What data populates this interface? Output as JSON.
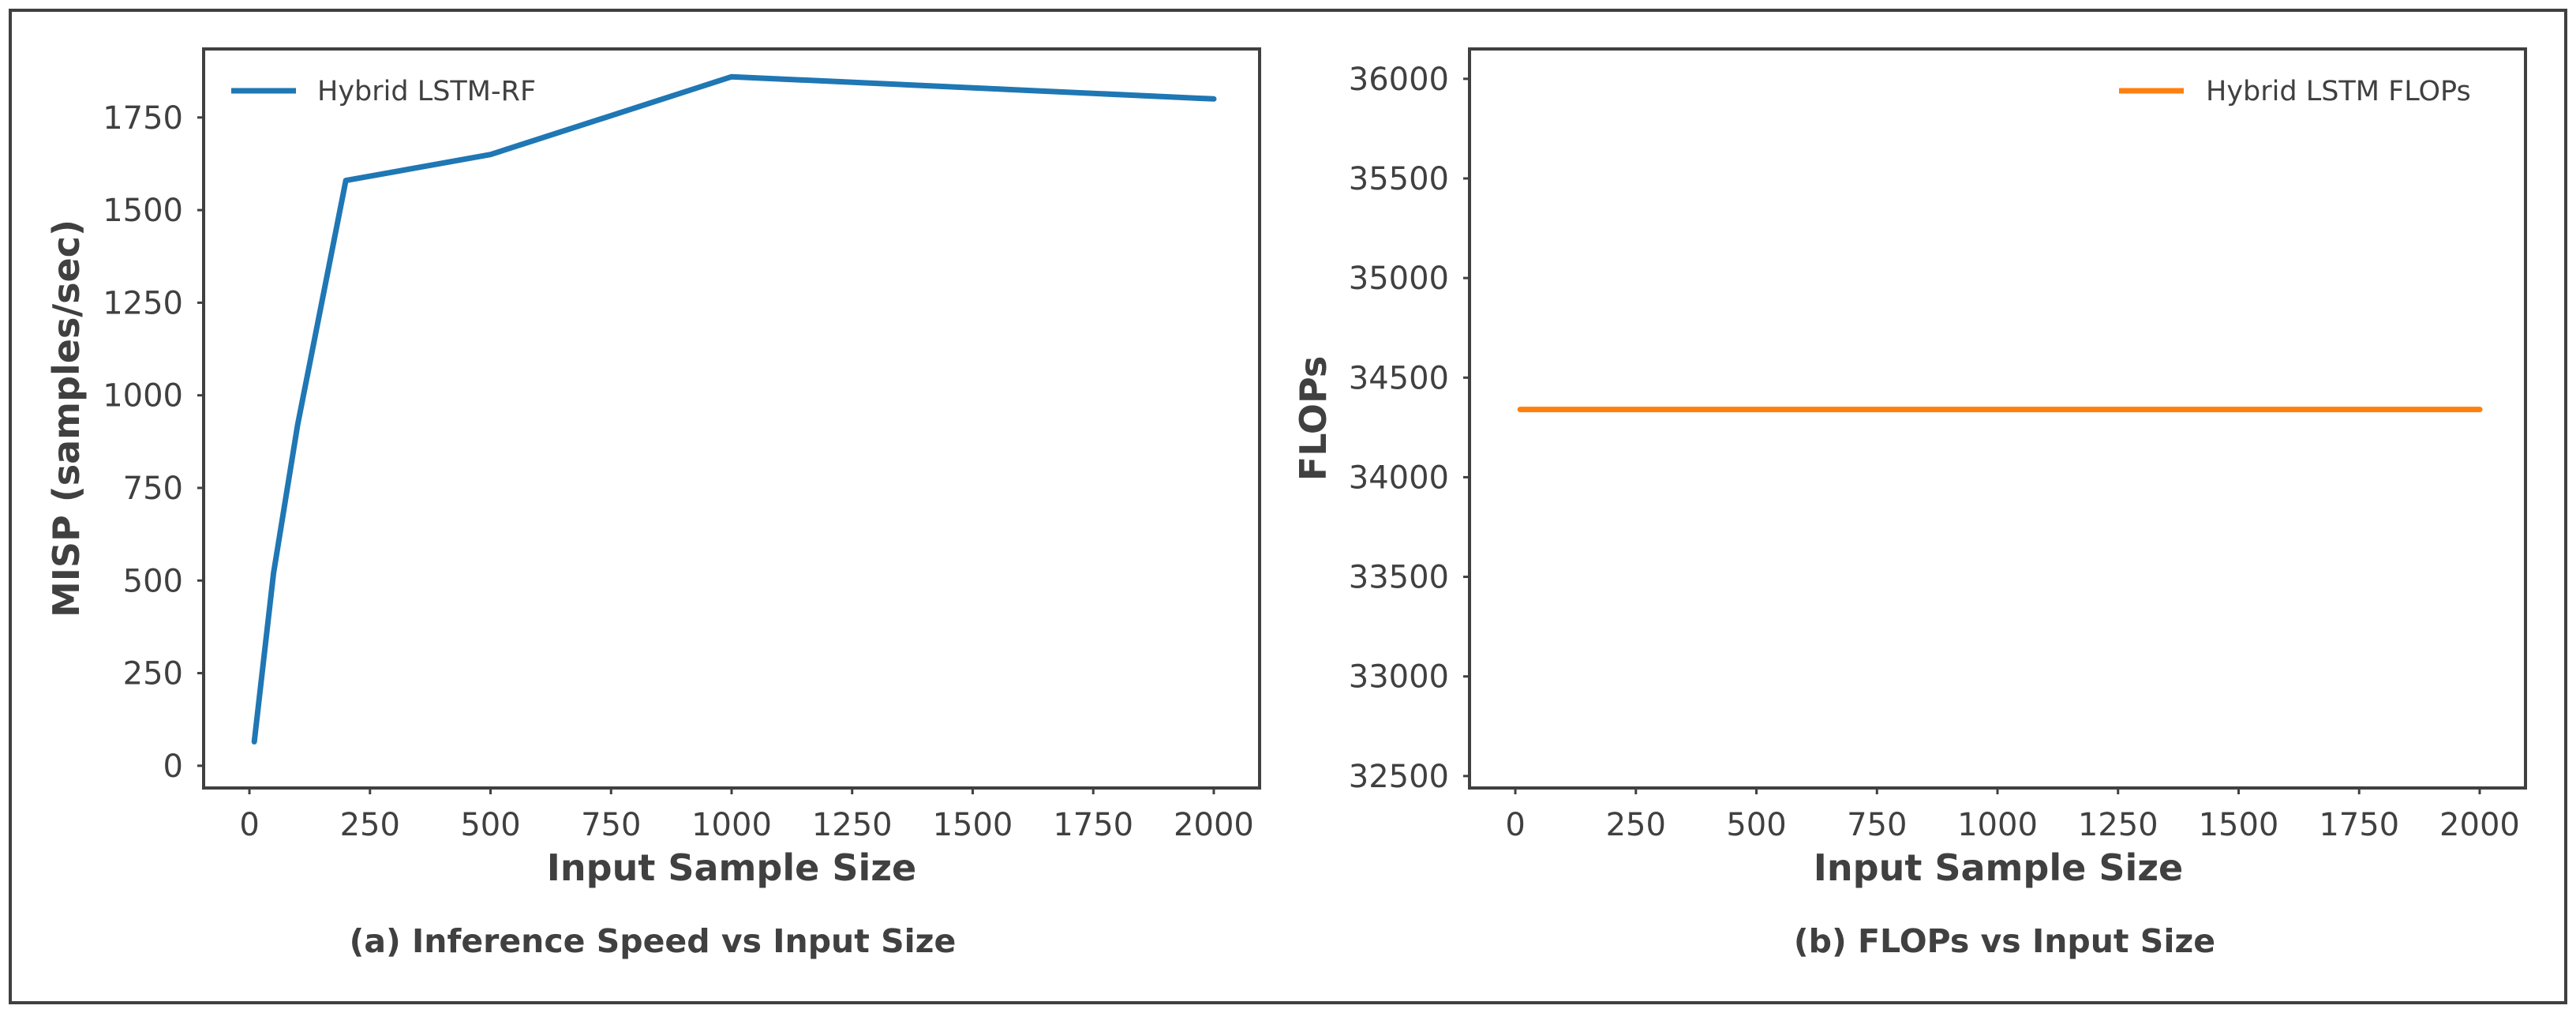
{
  "colors": {
    "series_a": "#1f77b4",
    "series_b": "#ff7f0e",
    "axes": "#404040",
    "background": "#ffffff"
  },
  "chart_data": [
    {
      "id": "a",
      "type": "line",
      "caption": "(a) Inference Speed vs Input Size",
      "title": "",
      "xlabel": "Input Sample Size",
      "ylabel": "MISP (samples/sec)",
      "xlim": [
        -95,
        2095
      ],
      "ylim": [
        -60,
        1935
      ],
      "xticks": [
        0,
        250,
        500,
        750,
        1000,
        1250,
        1500,
        1750,
        2000
      ],
      "yticks": [
        0,
        250,
        500,
        750,
        1000,
        1250,
        1500,
        1750
      ],
      "grid": false,
      "legend_position": "top-left",
      "series": [
        {
          "name": "Hybrid LSTM-RF",
          "color": "#1f77b4",
          "x": [
            10,
            50,
            100,
            200,
            500,
            1000,
            2000
          ],
          "y": [
            65,
            520,
            920,
            1580,
            1650,
            1860,
            1800
          ]
        }
      ]
    },
    {
      "id": "b",
      "type": "line",
      "caption": "(b) FLOPs vs Input Size",
      "title": "",
      "xlabel": "Input Sample Size",
      "ylabel": "FLOPs",
      "xlim": [
        -95,
        2095
      ],
      "ylim": [
        32440,
        36150
      ],
      "xticks": [
        0,
        250,
        500,
        750,
        1000,
        1250,
        1500,
        1750,
        2000
      ],
      "yticks": [
        32500,
        33000,
        33500,
        34000,
        34500,
        35000,
        35500,
        36000
      ],
      "grid": false,
      "legend_position": "top-right",
      "series": [
        {
          "name": "Hybrid LSTM FLOPs",
          "color": "#ff7f0e",
          "x": [
            10,
            50,
            100,
            200,
            500,
            1000,
            2000
          ],
          "y": [
            34340,
            34340,
            34340,
            34340,
            34340,
            34340,
            34340
          ]
        }
      ]
    }
  ]
}
